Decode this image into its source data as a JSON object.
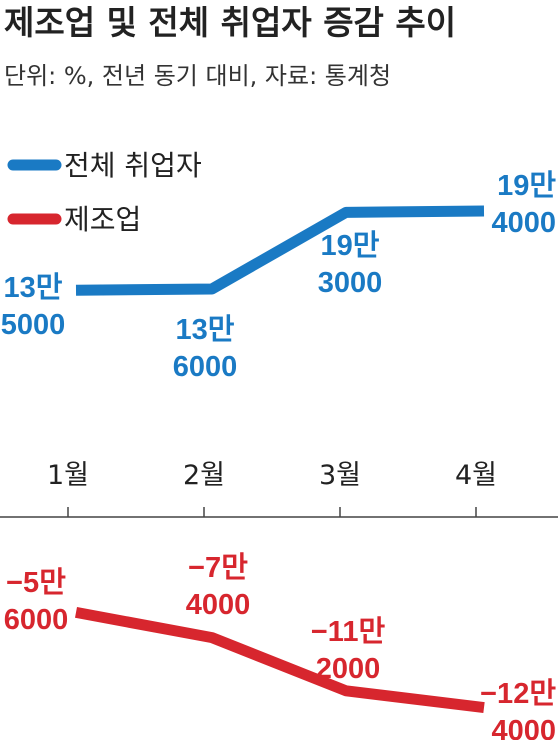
{
  "chart_data": {
    "type": "line",
    "title": "제조업 및 전체 취업자 증감 추이",
    "subtitle": "단위: %, 전년 동기 대비, 자료: 통계청",
    "categories": [
      "1월",
      "2월",
      "3월",
      "4월"
    ],
    "series": [
      {
        "name": "전체 취업자",
        "color": "#1a7ac4",
        "values": [
          135000,
          136000,
          193000,
          194000
        ],
        "labels": [
          [
            "13만",
            "5000"
          ],
          [
            "13만",
            "6000"
          ],
          [
            "19만",
            "3000"
          ],
          [
            "19만",
            "4000"
          ]
        ]
      },
      {
        "name": "제조업",
        "color": "#d7262e",
        "values": [
          -56000,
          -74000,
          -112000,
          -124000
        ],
        "labels": [
          [
            "−5만",
            "6000"
          ],
          [
            "−7만",
            "4000"
          ],
          [
            "−11만",
            "2000"
          ],
          [
            "−12만",
            "4000"
          ]
        ]
      }
    ],
    "legend_position": "top-left",
    "grid": false
  }
}
